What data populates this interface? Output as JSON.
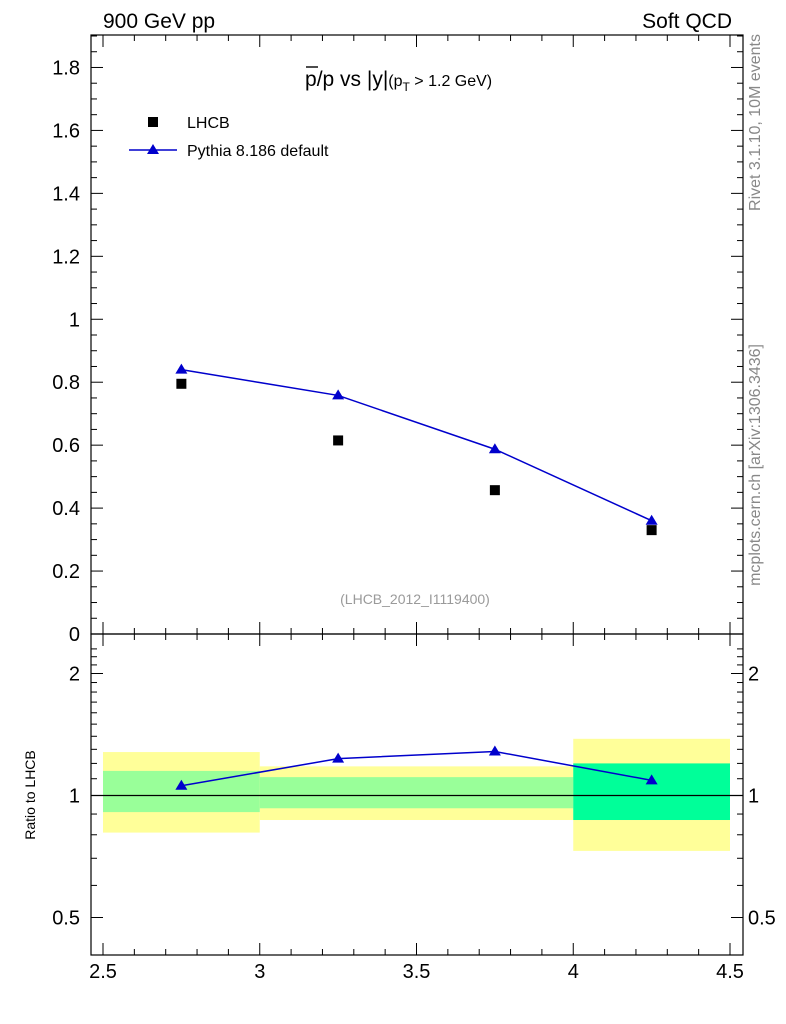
{
  "header": {
    "left": "900 GeV pp",
    "right": "Soft QCD"
  },
  "side_labels": {
    "rivet": "Rivet 3.1.10,  10M events",
    "mcplots": "mcplots.cern.ch [arXiv:1306.3436]"
  },
  "chart_data": [
    {
      "type": "scatter",
      "panel": "main",
      "title": {
        "pre": "p",
        "mid": "/p vs |y|",
        "cond_open": "(p",
        "cond_sub": "T",
        "cond_close": " > 1.2 GeV)"
      },
      "reference_code": "(LHCB_2012_I1119400)",
      "xlim": [
        2.5,
        4.5
      ],
      "ylim": [
        0,
        1.9
      ],
      "yticks": [
        "0",
        "0.2",
        "0.4",
        "0.6",
        "0.8",
        "1",
        "1.2",
        "1.4",
        "1.6",
        "1.8"
      ],
      "legend": {
        "placement": "top-left"
      },
      "series": [
        {
          "name": "LHCB",
          "marker": "square",
          "color": "#000000",
          "x": [
            2.75,
            3.25,
            3.75,
            4.25
          ],
          "y": [
            0.795,
            0.615,
            0.457,
            0.33
          ]
        },
        {
          "name": "Pythia 8.186 default",
          "marker": "triangle",
          "line": true,
          "color": "#0000cc",
          "x": [
            2.75,
            3.25,
            3.75,
            4.25
          ],
          "y": [
            0.84,
            0.758,
            0.587,
            0.36
          ]
        }
      ]
    },
    {
      "type": "line",
      "panel": "ratio",
      "ylabel": "Ratio to LHCB",
      "xlim": [
        2.5,
        4.5
      ],
      "ylim": [
        0.4,
        2.3
      ],
      "log_y": true,
      "xticks": [
        "2.5",
        "3",
        "3.5",
        "4",
        "4.5"
      ],
      "yticks": [
        "0.5",
        "1",
        "2"
      ],
      "uncertainty_bands": [
        {
          "x": [
            2.5,
            3.0
          ],
          "stat": [
            0.91,
            1.15
          ],
          "total": [
            0.81,
            1.28
          ]
        },
        {
          "x": [
            3.0,
            3.5
          ],
          "stat": [
            0.93,
            1.11
          ],
          "total": [
            0.87,
            1.18
          ]
        },
        {
          "x": [
            3.5,
            4.0
          ],
          "stat": [
            0.93,
            1.11
          ],
          "total": [
            0.87,
            1.18
          ]
        },
        {
          "x": [
            4.0,
            4.5
          ],
          "stat": [
            0.87,
            1.2
          ],
          "total": [
            0.73,
            1.38
          ]
        }
      ],
      "band_colors": {
        "total": "#ffff99",
        "stat": [
          "#99ff99",
          "#99ff99",
          "#99ff99",
          "#00ff99"
        ]
      },
      "series": [
        {
          "name": "Pythia 8.186 default",
          "color": "#0000cc",
          "x": [
            2.75,
            3.25,
            3.75,
            4.25
          ],
          "y": [
            1.057,
            1.233,
            1.284,
            1.09
          ]
        }
      ]
    }
  ]
}
